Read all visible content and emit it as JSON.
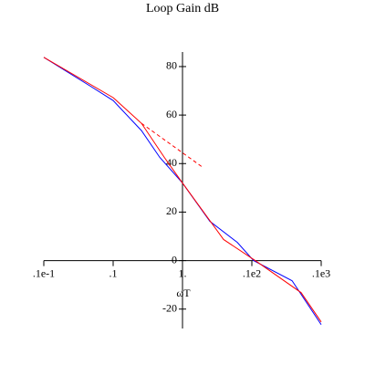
{
  "chart_data": {
    "type": "line",
    "title": "Loop Gain dB",
    "xlabel": "ωT",
    "log_x": true,
    "xlim": [
      0.01,
      100
    ],
    "ylim": [
      -28,
      86
    ],
    "xticks": [
      {
        "value": 0.01,
        "label": ".1e-1"
      },
      {
        "value": 0.1,
        "label": ".1"
      },
      {
        "value": 1,
        "label": "1."
      },
      {
        "value": 10,
        "label": ".1e2"
      },
      {
        "value": 100,
        "label": ".1e3"
      }
    ],
    "yticks": [
      -20,
      0,
      20,
      40,
      60,
      80
    ],
    "series": [
      {
        "color": "#0000ff",
        "x": [
          0.01,
          0.0483,
          0.1,
          0.256,
          0.469,
          1,
          2.48,
          6.17,
          10.6,
          38,
          100
        ],
        "values": [
          83.8,
          71.7,
          66,
          53.6,
          42.6,
          32,
          16.2,
          7.5,
          0,
          -8.3,
          -26.4
        ]
      },
      {
        "color": "#ff0000",
        "x": [
          0.01,
          0.1,
          0.256,
          0.546,
          1,
          3.91,
          11.2,
          51.3,
          100
        ],
        "values": [
          83.8,
          67.2,
          56.6,
          42.6,
          32,
          8.7,
          0,
          -13.2,
          -25.3
        ]
      },
      {
        "color": "#ff0000",
        "dash": true,
        "x": [
          0.256,
          1.95
        ],
        "values": [
          56.6,
          38.5
        ]
      }
    ]
  }
}
